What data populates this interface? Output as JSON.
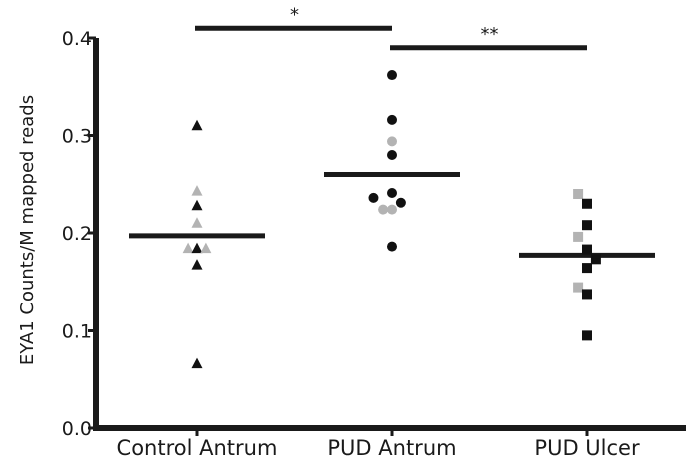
{
  "chart_data": {
    "type": "scatter",
    "title": "",
    "xlabel": "",
    "ylabel": "EYA1 Counts/M mapped reads",
    "ylim": [
      0.0,
      0.4
    ],
    "yticks": [
      "0.0",
      "0.1",
      "0.2",
      "0.3",
      "0.4"
    ],
    "yticks_values": [
      0.0,
      0.1,
      0.2,
      0.3,
      0.4
    ],
    "grid": false,
    "legend": "none",
    "categories": [
      "Control Antrum",
      "PUD Antrum",
      "PUD Ulcer"
    ],
    "colors": {
      "dark": "#111111",
      "light": "#b3b3b3"
    },
    "groups": [
      {
        "category": "Control Antrum",
        "marker": "triangle",
        "mean": 0.197,
        "points": [
          {
            "offset": 0.0,
            "y": 0.31,
            "shade": "dark"
          },
          {
            "offset": 0.0,
            "y": 0.243,
            "shade": "light"
          },
          {
            "offset": 0.0,
            "y": 0.228,
            "shade": "dark"
          },
          {
            "offset": 0.0,
            "y": 0.21,
            "shade": "light"
          },
          {
            "offset": -0.12,
            "y": 0.184,
            "shade": "light"
          },
          {
            "offset": 0.0,
            "y": 0.184,
            "shade": "dark"
          },
          {
            "offset": 0.12,
            "y": 0.184,
            "shade": "light"
          },
          {
            "offset": 0.0,
            "y": 0.167,
            "shade": "dark"
          },
          {
            "offset": 0.0,
            "y": 0.066,
            "shade": "dark"
          }
        ]
      },
      {
        "category": "PUD Antrum",
        "marker": "circle",
        "mean": 0.26,
        "points": [
          {
            "offset": 0.0,
            "y": 0.362,
            "shade": "dark"
          },
          {
            "offset": 0.0,
            "y": 0.316,
            "shade": "dark"
          },
          {
            "offset": 0.0,
            "y": 0.294,
            "shade": "light"
          },
          {
            "offset": 0.0,
            "y": 0.28,
            "shade": "dark"
          },
          {
            "offset": 0.0,
            "y": 0.241,
            "shade": "dark"
          },
          {
            "offset": -0.25,
            "y": 0.236,
            "shade": "dark"
          },
          {
            "offset": 0.12,
            "y": 0.231,
            "shade": "dark"
          },
          {
            "offset": -0.12,
            "y": 0.224,
            "shade": "light"
          },
          {
            "offset": 0.0,
            "y": 0.224,
            "shade": "light"
          },
          {
            "offset": 0.0,
            "y": 0.186,
            "shade": "dark"
          }
        ]
      },
      {
        "category": "PUD Ulcer",
        "marker": "square",
        "mean": 0.177,
        "points": [
          {
            "offset": -0.12,
            "y": 0.24,
            "shade": "light"
          },
          {
            "offset": 0.0,
            "y": 0.23,
            "shade": "dark"
          },
          {
            "offset": 0.0,
            "y": 0.208,
            "shade": "dark"
          },
          {
            "offset": -0.12,
            "y": 0.196,
            "shade": "light"
          },
          {
            "offset": 0.0,
            "y": 0.183,
            "shade": "dark"
          },
          {
            "offset": 0.12,
            "y": 0.173,
            "shade": "dark"
          },
          {
            "offset": 0.0,
            "y": 0.164,
            "shade": "dark"
          },
          {
            "offset": -0.12,
            "y": 0.144,
            "shade": "light"
          },
          {
            "offset": 0.0,
            "y": 0.137,
            "shade": "dark"
          },
          {
            "offset": 0.0,
            "y": 0.095,
            "shade": "dark"
          }
        ]
      }
    ],
    "significance": [
      {
        "from": "Control Antrum",
        "to": "PUD Antrum",
        "label": "*",
        "y": 0.41
      },
      {
        "from": "PUD Antrum",
        "to": "PUD Ulcer",
        "label": "**",
        "y": 0.39
      }
    ]
  }
}
